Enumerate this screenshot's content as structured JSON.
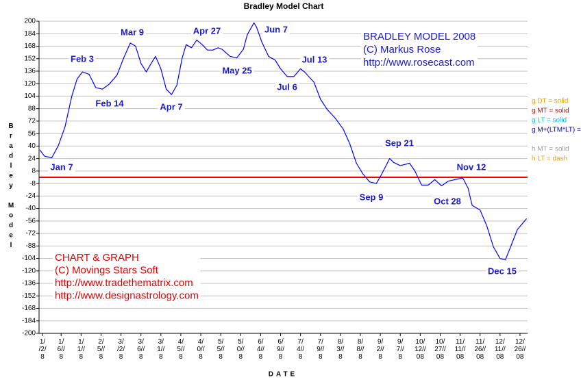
{
  "chart_data": {
    "type": "line",
    "title": "Bradley Model Chart",
    "xlabel": "DATE",
    "ylabel": "Bradley Model",
    "xlim": [
      -0.6,
      366.7
    ],
    "ylim": [
      -200,
      200
    ],
    "yticks": [
      200,
      184,
      168,
      152,
      136,
      120,
      104,
      88,
      72,
      56,
      40,
      24,
      8,
      -8,
      -24,
      -40,
      -56,
      -72,
      -88,
      -104,
      -120,
      -136,
      -152,
      -168,
      -184,
      -200
    ],
    "xticks": [
      {
        "value": 2,
        "label": "1/\n/2/\n8"
      },
      {
        "value": 16,
        "label": "1/\n6//\n8"
      },
      {
        "value": 31,
        "label": "1/\n1//\n8"
      },
      {
        "value": 46,
        "label": "2/\n5//\n8"
      },
      {
        "value": 61,
        "label": "3/\n/2/\n8"
      },
      {
        "value": 76,
        "label": "3/\n6//\n8"
      },
      {
        "value": 91,
        "label": "3/\n1//\n8"
      },
      {
        "value": 106,
        "label": "4/\n5//\n8"
      },
      {
        "value": 121,
        "label": "4/\n0//\n8"
      },
      {
        "value": 136,
        "label": "5/\n5//\n8"
      },
      {
        "value": 151,
        "label": "5/\n0//\n8"
      },
      {
        "value": 166,
        "label": "6/\n4//\n8"
      },
      {
        "value": 181,
        "label": "6/\n9//\n8"
      },
      {
        "value": 196,
        "label": "7/\n4//\n8"
      },
      {
        "value": 211,
        "label": "7/\n9//\n8"
      },
      {
        "value": 226,
        "label": "8/\n3//\n8"
      },
      {
        "value": 241,
        "label": "8/\n8//\n8"
      },
      {
        "value": 256,
        "label": "9/\n2//\n8"
      },
      {
        "value": 271,
        "label": "9/\n7//\n8"
      },
      {
        "value": 286,
        "label": "10/\n12//\n08"
      },
      {
        "value": 301,
        "label": "10/\n27//\n08"
      },
      {
        "value": 316,
        "label": "11/\n11//\n08"
      },
      {
        "value": 331,
        "label": "11/\n26//\n08"
      },
      {
        "value": 346,
        "label": "12/\n11//\n08"
      },
      {
        "value": 361,
        "label": "12/\n26//\n08"
      }
    ],
    "grid": true,
    "x": [
      0,
      3.5,
      9,
      14,
      19,
      24,
      28,
      32,
      37,
      42,
      47,
      52,
      58,
      63,
      68,
      72,
      76,
      80,
      83,
      87,
      91,
      95,
      99,
      103,
      107,
      110,
      114,
      118,
      122,
      126,
      130,
      134,
      137,
      143,
      148,
      153,
      156,
      161,
      163,
      167,
      172,
      177,
      181,
      186,
      191,
      196,
      199,
      206,
      211,
      216,
      222,
      228,
      233,
      238,
      243,
      248,
      253,
      257,
      263,
      266,
      271,
      278,
      282,
      287,
      292,
      297,
      302,
      307,
      312,
      318,
      322,
      325,
      331,
      336,
      341,
      346,
      350,
      354,
      359,
      366
    ],
    "series": [
      {
        "name": "g M+(LTM*LT)",
        "color": "#0000ff",
        "values": [
          35,
          27,
          25,
          41,
          65,
          104,
          126,
          135,
          132,
          115,
          113,
          119,
          131,
          153,
          172,
          168,
          146,
          135,
          144,
          155,
          139,
          113,
          106,
          118,
          153,
          170,
          166,
          176,
          170,
          163,
          163,
          166,
          164,
          155,
          153,
          164,
          183,
          198,
          192,
          173,
          155,
          150,
          139,
          129,
          129,
          139,
          135,
          122,
          100,
          87,
          76,
          62,
          43,
          18,
          4,
          -6,
          -8,
          4,
          24,
          19,
          15,
          18,
          8,
          -10,
          -10,
          -3,
          -11,
          -5,
          -3,
          -1,
          -14,
          -36,
          -42,
          -62,
          -89,
          -104,
          -106,
          -89,
          -67,
          -53
        ]
      }
    ],
    "reference_line": {
      "value": 0,
      "color": "#ff0000"
    },
    "annotations": [
      "Jan 7",
      "Feb 3",
      "Feb 14",
      "Mar 9",
      "Apr 7",
      "Apr 27",
      "Jun 7",
      "May 25",
      "Jul 13",
      "Jul 6",
      "Sep 21",
      "Sep 9",
      "Nov 12",
      "Oct 28",
      "Dec 15"
    ],
    "text_blocks": [
      {
        "color": "#1a1acc",
        "lines": [
          "BRADLEY MODEL 2008",
          "(C) Markus Rose",
          "http://www.rosecast.com"
        ]
      },
      {
        "color": "#e00000",
        "lines": [
          "CHART & GRAPH",
          "(C) Movings Stars Soft",
          "http://www.tradethematrix.com",
          "http://www.designastrology.com"
        ]
      }
    ],
    "legend": [
      {
        "label": "g DT = solid",
        "color": "#f0a000"
      },
      {
        "label": "g MT = solid",
        "color": "#e00000"
      },
      {
        "label": "g LT = solid",
        "color": "#00c8e0"
      },
      {
        "label": "g M+(LTM*LT) =",
        "color": "#0000c0"
      },
      {
        "label": "h MT = solid",
        "color": "#a0a0a0"
      },
      {
        "label": "h LT = dash",
        "color": "#f0a000"
      }
    ]
  }
}
